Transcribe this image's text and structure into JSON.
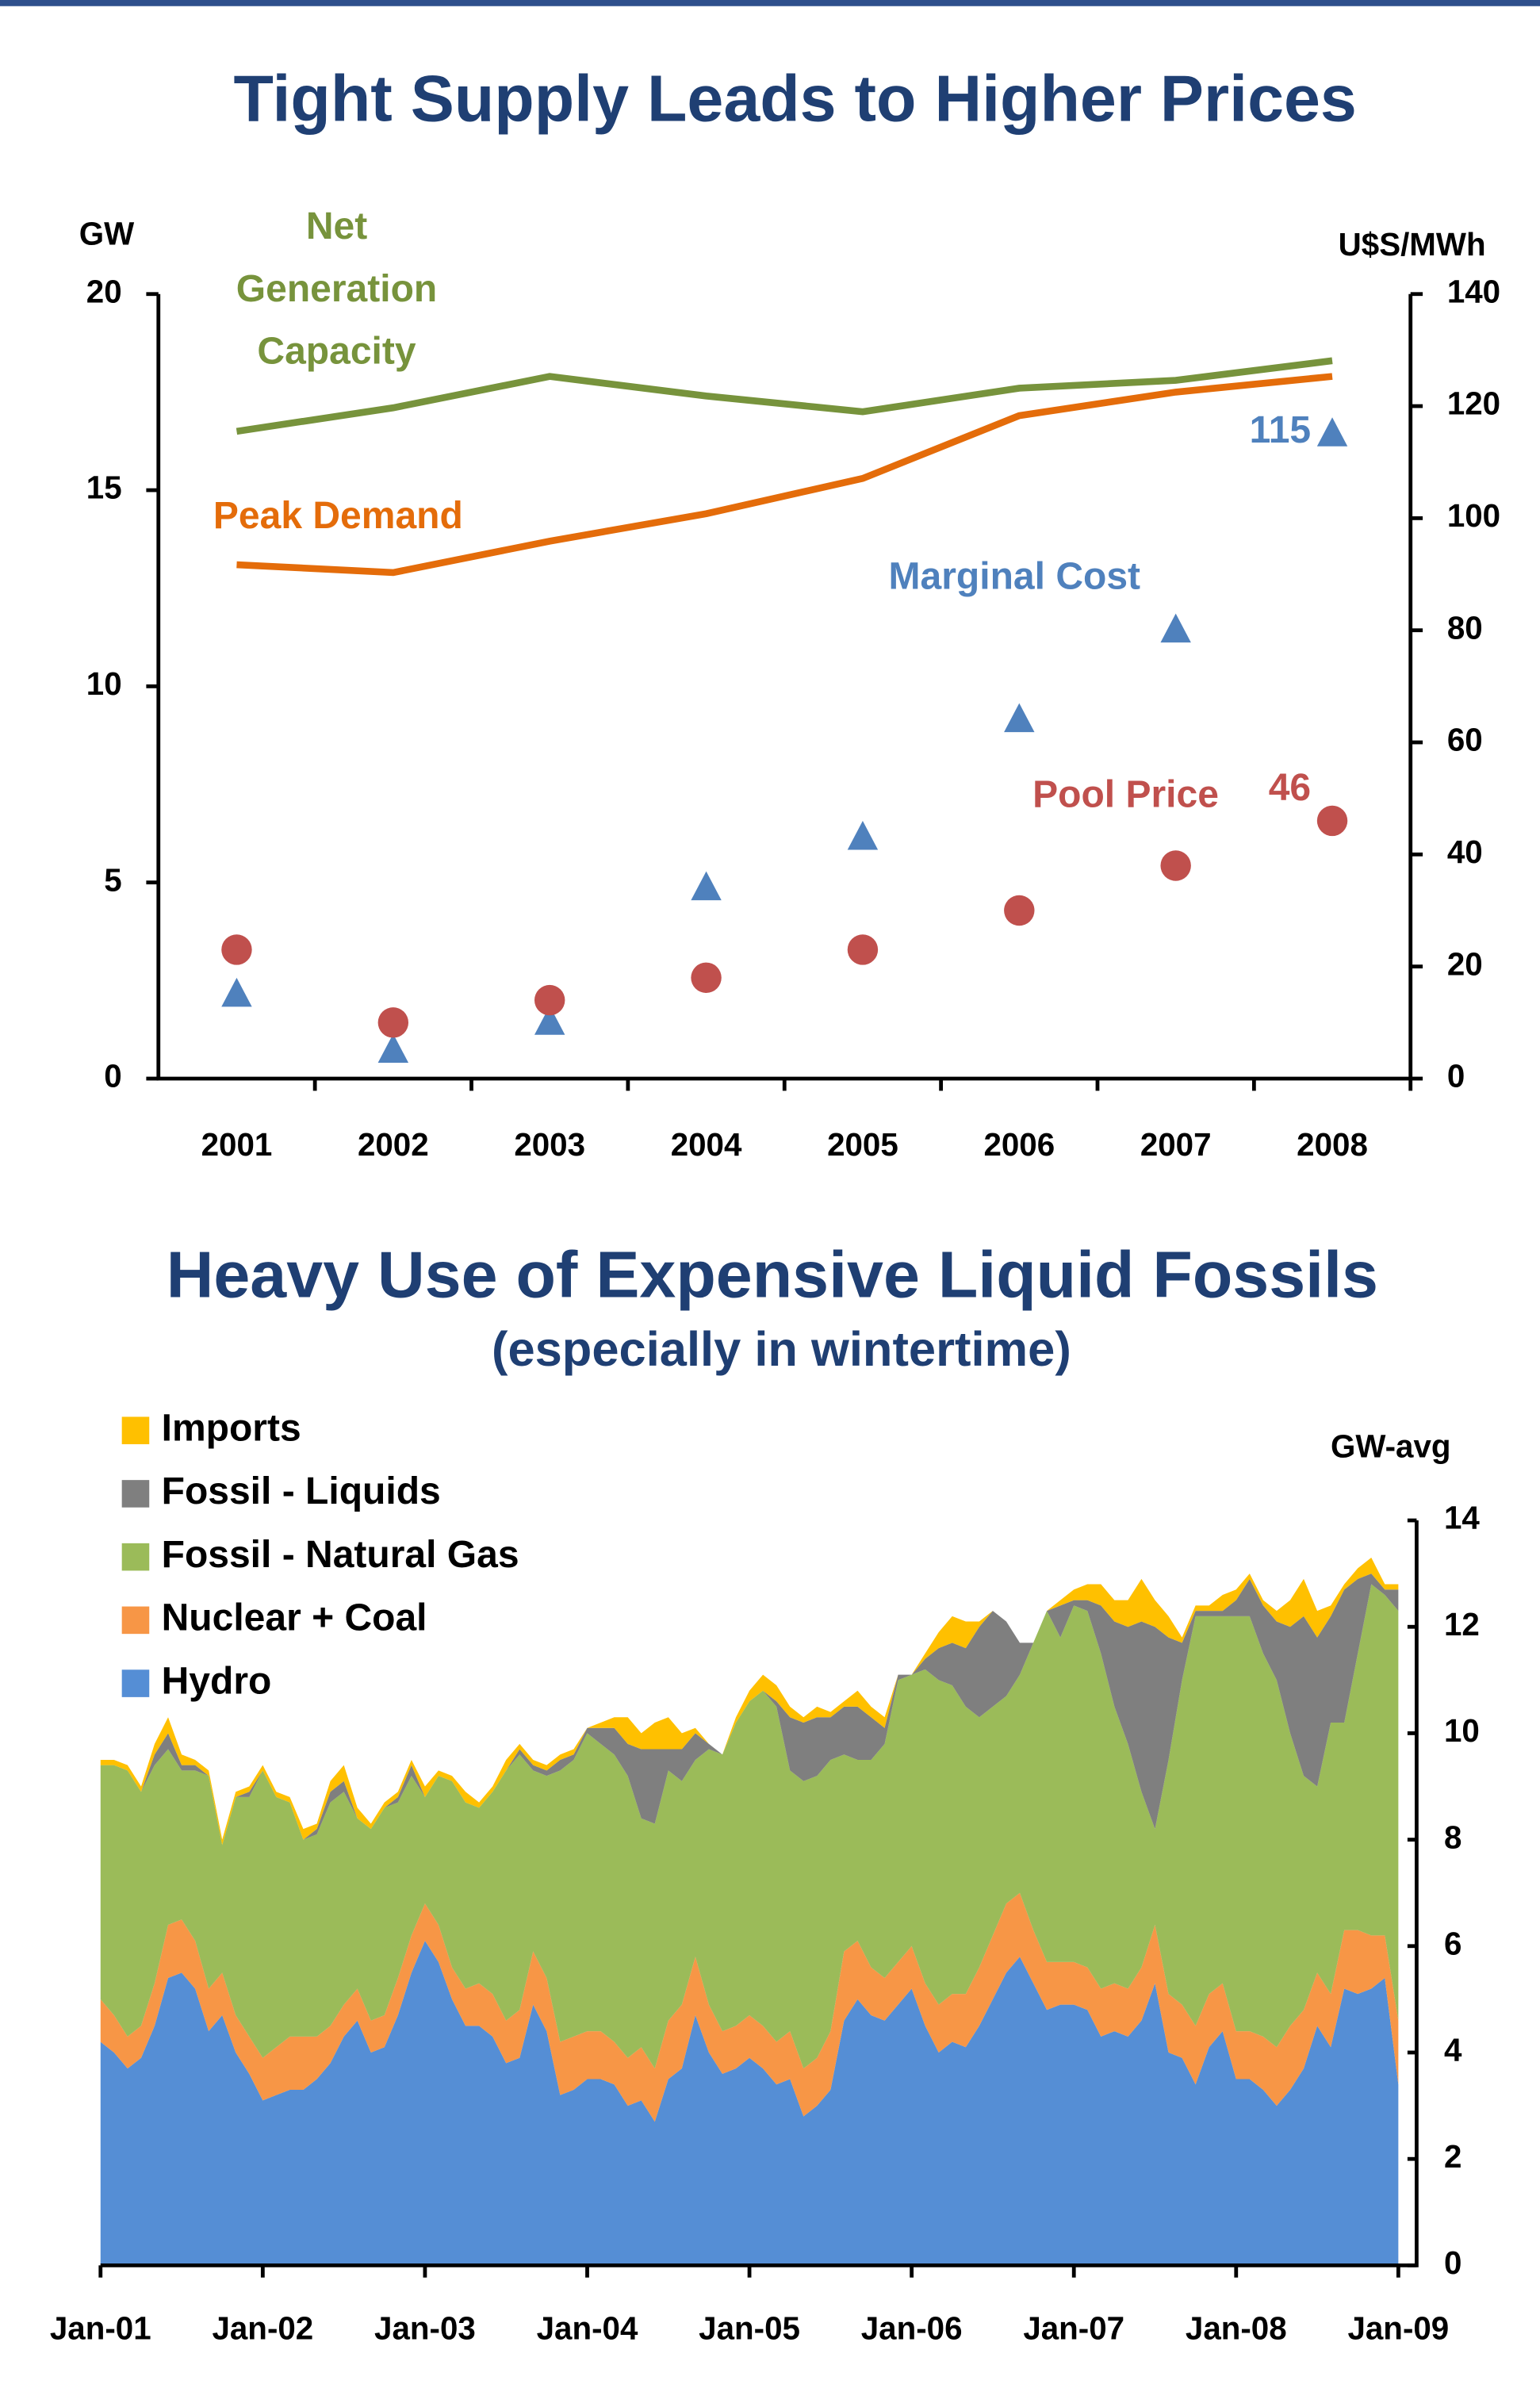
{
  "chart_data": [
    {
      "type": "combo",
      "title": "Tight Supply Leads to Higher Prices",
      "y_label": "GW",
      "y2_label": "U$S/MWh",
      "categories": [
        "2001",
        "2002",
        "2003",
        "2004",
        "2005",
        "2006",
        "2007",
        "2008"
      ],
      "ylim": [
        0,
        20
      ],
      "yticks": [
        0,
        5,
        10,
        15,
        20
      ],
      "y2lim": [
        0,
        140
      ],
      "y2ticks": [
        0,
        20,
        40,
        60,
        80,
        100,
        120,
        140
      ],
      "series": [
        {
          "name": "Net Generation Capacity",
          "kind": "line",
          "color": "#77933c",
          "values": [
            16.5,
            17.1,
            17.9,
            17.4,
            17.0,
            17.6,
            17.8,
            18.3
          ]
        },
        {
          "name": "Peak Demand",
          "kind": "line",
          "color": "#e46c0a",
          "values": [
            13.1,
            12.9,
            13.7,
            14.4,
            15.3,
            16.9,
            17.5,
            17.9
          ]
        },
        {
          "name": "Marginal Cost",
          "kind": "scatter",
          "marker": "triangle",
          "axis": "y2",
          "color": "#4f81bd",
          "values": [
            15,
            5,
            10,
            34,
            43,
            64,
            80,
            115
          ]
        },
        {
          "name": "Pool Price",
          "kind": "scatter",
          "marker": "circle",
          "axis": "y2",
          "color": "#c0504d",
          "values": [
            23,
            10,
            14,
            18,
            23,
            30,
            38,
            46
          ]
        }
      ]
    },
    {
      "type": "stacked_area",
      "title": "Heavy Use of Expensive Liquid Fossils",
      "subtitle": "(especially in wintertime)",
      "y_label": "GW-avg",
      "ylim": [
        0,
        14
      ],
      "yticks": [
        0,
        2,
        4,
        6,
        8,
        10,
        12,
        14
      ],
      "x": [
        "2001-01",
        "2001-02",
        "2001-03",
        "2001-04",
        "2001-05",
        "2001-06",
        "2001-07",
        "2001-08",
        "2001-09",
        "2001-10",
        "2001-11",
        "2001-12",
        "2002-01",
        "2002-02",
        "2002-03",
        "2002-04",
        "2002-05",
        "2002-06",
        "2002-07",
        "2002-08",
        "2002-09",
        "2002-10",
        "2002-11",
        "2002-12",
        "2003-01",
        "2003-02",
        "2003-03",
        "2003-04",
        "2003-05",
        "2003-06",
        "2003-07",
        "2003-08",
        "2003-09",
        "2003-10",
        "2003-11",
        "2003-12",
        "2004-01",
        "2004-02",
        "2004-03",
        "2004-04",
        "2004-05",
        "2004-06",
        "2004-07",
        "2004-08",
        "2004-09",
        "2004-10",
        "2004-11",
        "2004-12",
        "2005-01",
        "2005-02",
        "2005-03",
        "2005-04",
        "2005-05",
        "2005-06",
        "2005-07",
        "2005-08",
        "2005-09",
        "2005-10",
        "2005-11",
        "2005-12",
        "2006-01",
        "2006-02",
        "2006-03",
        "2006-04",
        "2006-05",
        "2006-06",
        "2006-07",
        "2006-08",
        "2006-09",
        "2006-10",
        "2006-11",
        "2006-12",
        "2007-01",
        "2007-02",
        "2007-03",
        "2007-04",
        "2007-05",
        "2007-06",
        "2007-07",
        "2007-08",
        "2007-09",
        "2007-10",
        "2007-11",
        "2007-12",
        "2008-01",
        "2008-02",
        "2008-03",
        "2008-04",
        "2008-05",
        "2008-06",
        "2008-07",
        "2008-08",
        "2008-09",
        "2008-10",
        "2008-11",
        "2008-12",
        "2009-01"
      ],
      "xticks": [
        {
          "value": "2001-01",
          "label": "Jan-01"
        },
        {
          "value": "2002-01",
          "label": "Jan-02"
        },
        {
          "value": "2003-01",
          "label": "Jan-03"
        },
        {
          "value": "2004-01",
          "label": "Jan-04"
        },
        {
          "value": "2005-01",
          "label": "Jan-05"
        },
        {
          "value": "2006-01",
          "label": "Jan-06"
        },
        {
          "value": "2007-01",
          "label": "Jan-07"
        },
        {
          "value": "2008-01",
          "label": "Jan-08"
        },
        {
          "value": "2009-01",
          "label": "Jan-09"
        }
      ],
      "series": [
        {
          "name": "Hydro",
          "color": "#558ed5",
          "values": [
            4.2,
            4.0,
            3.7,
            3.9,
            4.5,
            5.4,
            5.5,
            5.2,
            4.4,
            4.7,
            4.0,
            3.6,
            3.1,
            3.2,
            3.3,
            3.3,
            3.5,
            3.8,
            4.3,
            4.6,
            4.0,
            4.1,
            4.7,
            5.5,
            6.1,
            5.7,
            5.0,
            4.5,
            4.5,
            4.3,
            3.8,
            3.9,
            4.9,
            4.4,
            3.2,
            3.3,
            3.5,
            3.5,
            3.4,
            3.0,
            3.1,
            2.7,
            3.5,
            3.7,
            4.7,
            4.0,
            3.6,
            3.7,
            3.9,
            3.7,
            3.4,
            3.5,
            2.8,
            3.0,
            3.3,
            4.6,
            5.0,
            4.7,
            4.6,
            4.9,
            5.2,
            4.5,
            4.0,
            4.2,
            4.1,
            4.5,
            5.0,
            5.5,
            5.8,
            5.3,
            4.8,
            4.9,
            4.9,
            4.8,
            4.3,
            4.4,
            4.3,
            4.6,
            5.3,
            4.0,
            3.9,
            3.4,
            4.1,
            4.4,
            3.5,
            3.5,
            3.3,
            3.0,
            3.3,
            3.7,
            4.5,
            4.1,
            5.2,
            5.1,
            5.2,
            5.4,
            3.4
          ]
        },
        {
          "name": "Nuclear + Coal",
          "color": "#f79646",
          "values": [
            0.8,
            0.7,
            0.6,
            0.6,
            0.8,
            1.0,
            1.0,
            0.9,
            0.8,
            0.8,
            0.7,
            0.7,
            0.8,
            0.9,
            1.0,
            1.0,
            0.8,
            0.7,
            0.6,
            0.6,
            0.6,
            0.6,
            0.7,
            0.7,
            0.7,
            0.7,
            0.6,
            0.7,
            0.8,
            0.8,
            0.8,
            0.9,
            1.0,
            1.0,
            1.0,
            1.0,
            0.9,
            0.9,
            0.8,
            0.9,
            1.0,
            1.0,
            1.1,
            1.2,
            1.1,
            0.9,
            0.8,
            0.8,
            0.8,
            0.8,
            0.8,
            0.9,
            0.9,
            0.9,
            1.1,
            1.3,
            1.1,
            0.9,
            0.8,
            0.8,
            0.8,
            0.8,
            0.9,
            0.9,
            1.0,
            1.1,
            1.2,
            1.3,
            1.2,
            1.0,
            0.9,
            0.8,
            0.8,
            0.8,
            0.9,
            0.9,
            0.9,
            1.0,
            1.1,
            1.1,
            1.0,
            1.1,
            1.0,
            0.9,
            0.9,
            0.9,
            1.0,
            1.1,
            1.2,
            1.1,
            1.0,
            1.0,
            1.1,
            1.2,
            1.0,
            0.8,
            1.2
          ]
        },
        {
          "name": "Fossil - Natural Gas",
          "color": "#9bbb59",
          "values": [
            4.4,
            4.7,
            5.0,
            4.4,
            4.1,
            3.3,
            2.8,
            3.2,
            4.0,
            2.4,
            4.1,
            4.5,
            5.4,
            4.7,
            4.4,
            3.7,
            3.8,
            4.2,
            4.0,
            3.2,
            3.6,
            3.9,
            3.3,
            3.0,
            2.0,
            2.8,
            3.5,
            3.5,
            3.3,
            3.8,
            4.7,
            4.8,
            3.4,
            3.8,
            5.1,
            5.2,
            5.6,
            5.4,
            5.4,
            5.3,
            4.3,
            4.6,
            4.7,
            4.2,
            3.7,
            4.8,
            5.2,
            5.7,
            5.9,
            6.3,
            6.3,
            4.9,
            5.4,
            5.3,
            5.1,
            3.7,
            3.4,
            3.9,
            4.4,
            5.3,
            5.1,
            5.9,
            6.1,
            5.8,
            5.4,
            4.7,
            4.3,
            3.9,
            4.1,
            5.4,
            6.6,
            6.1,
            6.7,
            6.7,
            6.3,
            5.2,
            4.6,
            3.3,
            1.8,
            4.4,
            6.1,
            7.7,
            7.1,
            6.9,
            7.8,
            7.8,
            7.2,
            6.9,
            5.5,
            4.4,
            3.5,
            5.1,
            3.9,
            5.2,
            6.6,
            6.4,
            7.7
          ]
        },
        {
          "name": "Fossil - Liquids",
          "color": "#7f7f7f",
          "values": [
            0,
            0,
            0,
            0,
            0.2,
            0.3,
            0.1,
            0.1,
            0,
            0,
            0,
            0.1,
            0,
            0,
            0,
            0,
            0.1,
            0.2,
            0.2,
            0,
            0,
            0,
            0.1,
            0.2,
            0,
            0,
            0,
            0,
            0,
            0,
            0,
            0.1,
            0.1,
            0.1,
            0.2,
            0.1,
            0.1,
            0.3,
            0.5,
            0.6,
            1.3,
            1.4,
            0.4,
            0.6,
            0.5,
            0.1,
            0,
            0,
            0,
            0,
            0.1,
            1.0,
            1.1,
            1.1,
            0.8,
            0.9,
            1.0,
            0.8,
            0.3,
            0.1,
            0,
            0.2,
            0.6,
            0.8,
            1.1,
            1.7,
            1.8,
            1.4,
            0.6,
            0,
            0,
            0.6,
            0.1,
            0.2,
            0.9,
            1.6,
            2.2,
            3.2,
            3.8,
            2.3,
            0.7,
            0.1,
            0.1,
            0.1,
            0.3,
            0.7,
            0.9,
            1.1,
            2.0,
            3.0,
            2.8,
            2.0,
            2.5,
            1.4,
            0.2,
            0.1,
            0.4
          ]
        },
        {
          "name": "Imports",
          "color": "#ffc000",
          "values": [
            0.1,
            0.1,
            0.1,
            0.1,
            0.2,
            0.3,
            0.2,
            0.1,
            0.1,
            0.1,
            0.1,
            0.1,
            0.1,
            0.1,
            0.1,
            0.2,
            0.1,
            0.2,
            0.3,
            0.2,
            0.1,
            0.1,
            0.1,
            0.1,
            0.2,
            0.1,
            0.1,
            0.2,
            0.1,
            0.1,
            0.2,
            0.1,
            0.1,
            0.1,
            0.1,
            0.1,
            0,
            0.1,
            0.2,
            0.5,
            0.3,
            0.5,
            0.6,
            0.3,
            0.1,
            0,
            0,
            0.1,
            0.2,
            0.3,
            0.3,
            0.2,
            0.1,
            0.2,
            0.1,
            0.1,
            0.3,
            0.2,
            0.2,
            0,
            0,
            0.1,
            0.3,
            0.5,
            0.5,
            0.1,
            0,
            0,
            0,
            0,
            0,
            0.1,
            0.2,
            0.3,
            0.4,
            0.4,
            0.5,
            0.8,
            0.5,
            0.4,
            0.1,
            0.1,
            0.1,
            0.3,
            0.2,
            0.1,
            0.1,
            0.2,
            0.5,
            0.7,
            0.5,
            0.2,
            0.1,
            0.2,
            0.3,
            0.1,
            0.1
          ]
        }
      ]
    }
  ]
}
